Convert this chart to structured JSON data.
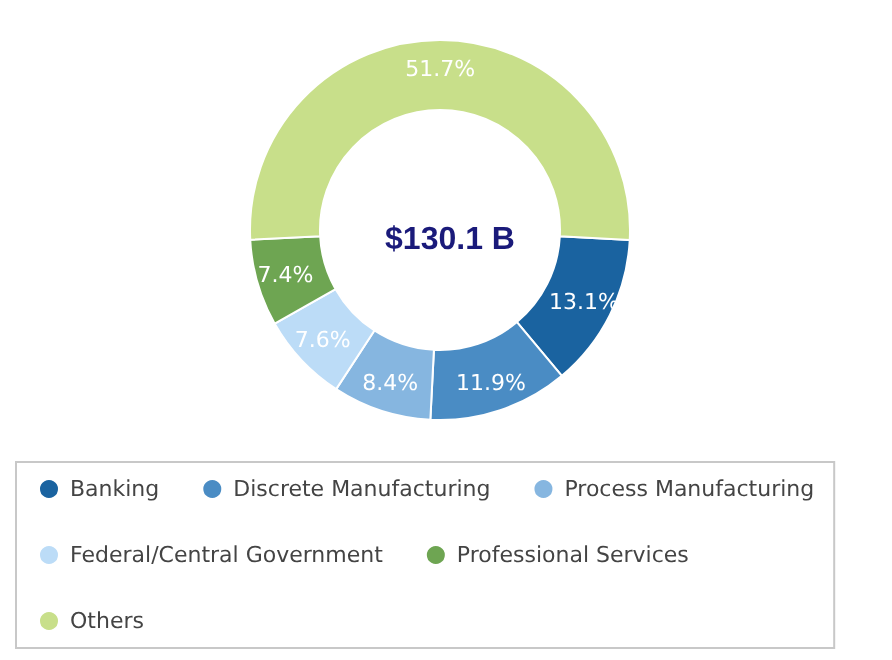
{
  "chart_data": {
    "type": "donut",
    "title": "$130.1 B",
    "categories": [
      "Banking",
      "Discrete Manufacturing",
      "Process Manufacturing",
      "Federal/Central Government",
      "Professional Services",
      "Others"
    ],
    "values": [
      13.1,
      11.9,
      8.4,
      7.6,
      7.4,
      51.7
    ],
    "value_labels": [
      "13.1%",
      "11.9%",
      "8.4%",
      "7.6%",
      "7.4%",
      "51.7%"
    ],
    "colors": [
      "#1a63a0",
      "#4a8cc4",
      "#86b6e0",
      "#bcdcf7",
      "#6ea552",
      "#c8df8a"
    ],
    "legend": "bottom"
  }
}
